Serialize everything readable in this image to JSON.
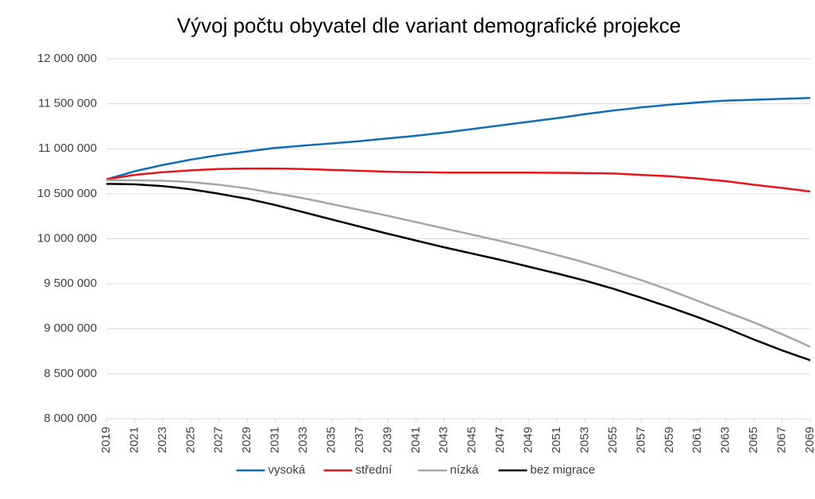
{
  "chart_data": {
    "type": "line",
    "title": "Vývoj počtu obyvatel dle variant demografické projekce",
    "x": [
      2019,
      2020,
      2021,
      2022,
      2023,
      2024,
      2025,
      2026,
      2027,
      2028,
      2029,
      2030,
      2031,
      2032,
      2033,
      2034,
      2035,
      2036,
      2037,
      2038,
      2039,
      2040,
      2041,
      2042,
      2043,
      2044,
      2045,
      2046,
      2047,
      2048,
      2049,
      2050,
      2051,
      2052,
      2053,
      2054,
      2055,
      2056,
      2057,
      2058,
      2059,
      2060,
      2061,
      2062,
      2063,
      2064,
      2065,
      2066,
      2067,
      2068,
      2069
    ],
    "xlim": [
      2019,
      2069
    ],
    "xticks": [
      2019,
      2021,
      2023,
      2025,
      2027,
      2029,
      2031,
      2033,
      2035,
      2037,
      2039,
      2041,
      2043,
      2045,
      2047,
      2049,
      2051,
      2053,
      2055,
      2057,
      2059,
      2061,
      2063,
      2065,
      2067,
      2069
    ],
    "ylim": [
      8000000,
      12000000
    ],
    "yticks": [
      {
        "value": 8000000,
        "label": "8 000 000"
      },
      {
        "value": 8500000,
        "label": "8 500 000"
      },
      {
        "value": 9000000,
        "label": "9 000 000"
      },
      {
        "value": 9500000,
        "label": "9 500 000"
      },
      {
        "value": 10000000,
        "label": "10 000 000"
      },
      {
        "value": 10500000,
        "label": "10 500 000"
      },
      {
        "value": 11000000,
        "label": "11 000 000"
      },
      {
        "value": 11500000,
        "label": "11 500 000"
      },
      {
        "value": 12000000,
        "label": "12 000 000"
      }
    ],
    "grid": true,
    "legend": "bottom",
    "series": [
      {
        "name": "vysoká",
        "color": "#0f6db5",
        "values": [
          10660000,
          10705000,
          10750000,
          10785000,
          10820000,
          10850000,
          10880000,
          10905000,
          10930000,
          10950000,
          10970000,
          10990000,
          11010000,
          11022000,
          11035000,
          11048000,
          11060000,
          11072000,
          11085000,
          11100000,
          11115000,
          11130000,
          11145000,
          11162000,
          11180000,
          11200000,
          11220000,
          11240000,
          11260000,
          11280000,
          11300000,
          11320000,
          11340000,
          11362000,
          11385000,
          11405000,
          11425000,
          11442000,
          11460000,
          11475000,
          11490000,
          11502000,
          11515000,
          11525000,
          11535000,
          11540000,
          11545000,
          11550000,
          11555000,
          11560000,
          11565000
        ]
      },
      {
        "name": "střední",
        "color": "#e8141c",
        "values": [
          10660000,
          10685000,
          10710000,
          10725000,
          10740000,
          10750000,
          10760000,
          10768000,
          10775000,
          10778000,
          10780000,
          10780000,
          10780000,
          10778000,
          10775000,
          10770000,
          10765000,
          10760000,
          10755000,
          10750000,
          10745000,
          10742000,
          10740000,
          10738000,
          10735000,
          10735000,
          10735000,
          10735000,
          10735000,
          10735000,
          10735000,
          10734000,
          10733000,
          10732000,
          10730000,
          10728000,
          10725000,
          10718000,
          10710000,
          10702000,
          10695000,
          10682000,
          10670000,
          10655000,
          10640000,
          10620000,
          10600000,
          10582000,
          10565000,
          10545000,
          10525000
        ]
      },
      {
        "name": "nízká",
        "color": "#a6a6a6",
        "values": [
          10650000,
          10650000,
          10650000,
          10648000,
          10645000,
          10638000,
          10630000,
          10615000,
          10600000,
          10580000,
          10560000,
          10532000,
          10505000,
          10478000,
          10450000,
          10418000,
          10385000,
          10352000,
          10320000,
          10288000,
          10255000,
          10220000,
          10185000,
          10150000,
          10115000,
          10080000,
          10045000,
          10010000,
          9975000,
          9938000,
          9900000,
          9860000,
          9820000,
          9778000,
          9735000,
          9688000,
          9640000,
          9590000,
          9540000,
          9485000,
          9430000,
          9370000,
          9310000,
          9250000,
          9190000,
          9130000,
          9070000,
          9005000,
          8940000,
          8870000,
          8800000
        ]
      },
      {
        "name": "bez migrace",
        "color": "#000000",
        "values": [
          10610000,
          10608000,
          10605000,
          10595000,
          10585000,
          10568000,
          10550000,
          10525000,
          10500000,
          10472000,
          10445000,
          10410000,
          10375000,
          10335000,
          10295000,
          10255000,
          10215000,
          10175000,
          10135000,
          10095000,
          10055000,
          10018000,
          9980000,
          9942000,
          9905000,
          9870000,
          9835000,
          9800000,
          9765000,
          9728000,
          9690000,
          9652000,
          9615000,
          9575000,
          9535000,
          9490000,
          9445000,
          9395000,
          9345000,
          9292000,
          9240000,
          9185000,
          9130000,
          9070000,
          9010000,
          8945000,
          8880000,
          8820000,
          8760000,
          8705000,
          8650000
        ]
      }
    ]
  }
}
